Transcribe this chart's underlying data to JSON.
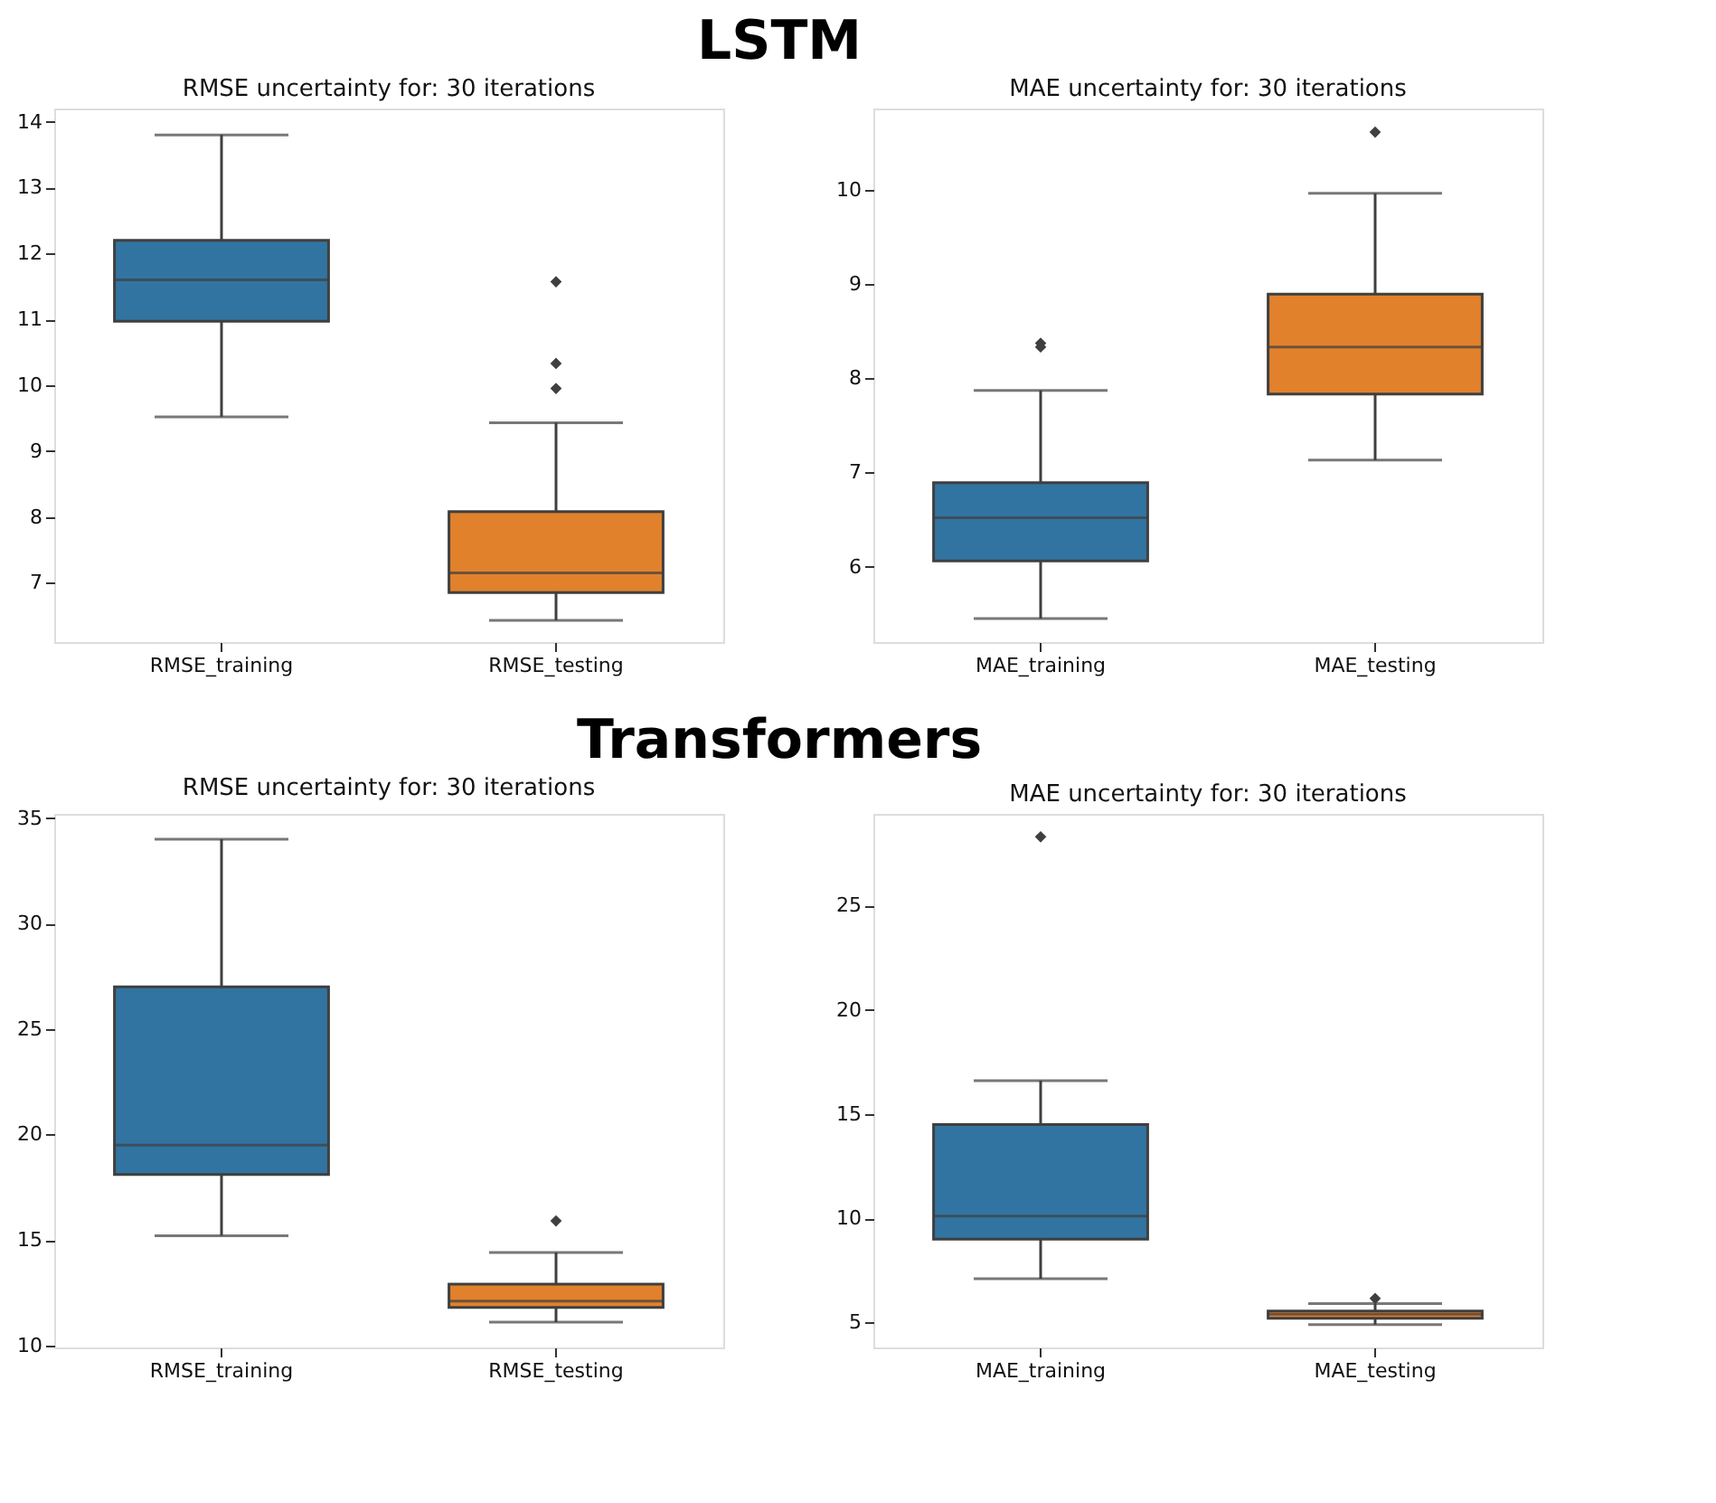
{
  "chart_data": [
    {
      "type": "box",
      "annotations": [
        "LSTM"
      ],
      "title": "RMSE uncertainty for: 30 iterations",
      "categories": [
        "RMSE_training",
        "RMSE_testing"
      ],
      "colors": [
        "#3274a1",
        "#e1812c"
      ],
      "marker": "diamond",
      "grid": false,
      "ylim": [
        6.1,
        14.2
      ],
      "yticks": [
        7,
        8,
        9,
        10,
        11,
        12,
        13,
        14
      ],
      "boxes": [
        {
          "low": 9.52,
          "q1": 10.97,
          "median": 11.6,
          "q3": 12.2,
          "high": 13.8
        },
        {
          "low": 6.43,
          "q1": 6.85,
          "median": 7.15,
          "q3": 8.08,
          "high": 9.43,
          "outliers": [
            9.95,
            10.33,
            11.57
          ]
        }
      ]
    },
    {
      "type": "box",
      "title": "MAE uncertainty for: 30 iterations",
      "categories": [
        "MAE_training",
        "MAE_testing"
      ],
      "colors": [
        "#3274a1",
        "#e1812c"
      ],
      "marker": "diamond",
      "grid": false,
      "ylim": [
        5.2,
        10.86
      ],
      "yticks": [
        6,
        7,
        8,
        9,
        10
      ],
      "boxes": [
        {
          "low": 5.45,
          "q1": 6.06,
          "median": 6.52,
          "q3": 6.89,
          "high": 7.87,
          "outliers": [
            8.33,
            8.37
          ]
        },
        {
          "low": 7.13,
          "q1": 7.83,
          "median": 8.33,
          "q3": 8.89,
          "high": 9.96,
          "outliers": [
            10.61
          ]
        }
      ]
    },
    {
      "type": "box",
      "annotations": [
        "Transformers"
      ],
      "title": "RMSE uncertainty for: 30 iterations",
      "categories": [
        "RMSE_training",
        "RMSE_testing"
      ],
      "colors": [
        "#3274a1",
        "#e1812c"
      ],
      "marker": "diamond",
      "grid": false,
      "ylim": [
        9.9,
        35.2
      ],
      "yticks": [
        10,
        15,
        20,
        25,
        30,
        35
      ],
      "boxes": [
        {
          "low": 15.2,
          "q1": 18.1,
          "median": 19.5,
          "q3": 27.0,
          "high": 34.0
        },
        {
          "low": 11.1,
          "q1": 11.8,
          "median": 12.1,
          "q3": 12.9,
          "high": 14.4,
          "outliers": [
            15.9
          ]
        }
      ]
    },
    {
      "type": "box",
      "title": "MAE uncertainty for: 30 iterations",
      "categories": [
        "MAE_training",
        "MAE_testing"
      ],
      "colors": [
        "#3274a1",
        "#e1812c"
      ],
      "marker": "diamond",
      "grid": false,
      "ylim": [
        3.8,
        29.4
      ],
      "yticks": [
        5,
        10,
        15,
        20,
        25
      ],
      "boxes": [
        {
          "low": 7.1,
          "q1": 9.0,
          "median": 10.1,
          "q3": 14.5,
          "high": 16.6,
          "outliers": [
            28.3
          ]
        },
        {
          "low": 4.9,
          "q1": 5.2,
          "median": 5.4,
          "q3": 5.55,
          "high": 5.9,
          "outliers": [
            6.15
          ]
        }
      ]
    }
  ]
}
